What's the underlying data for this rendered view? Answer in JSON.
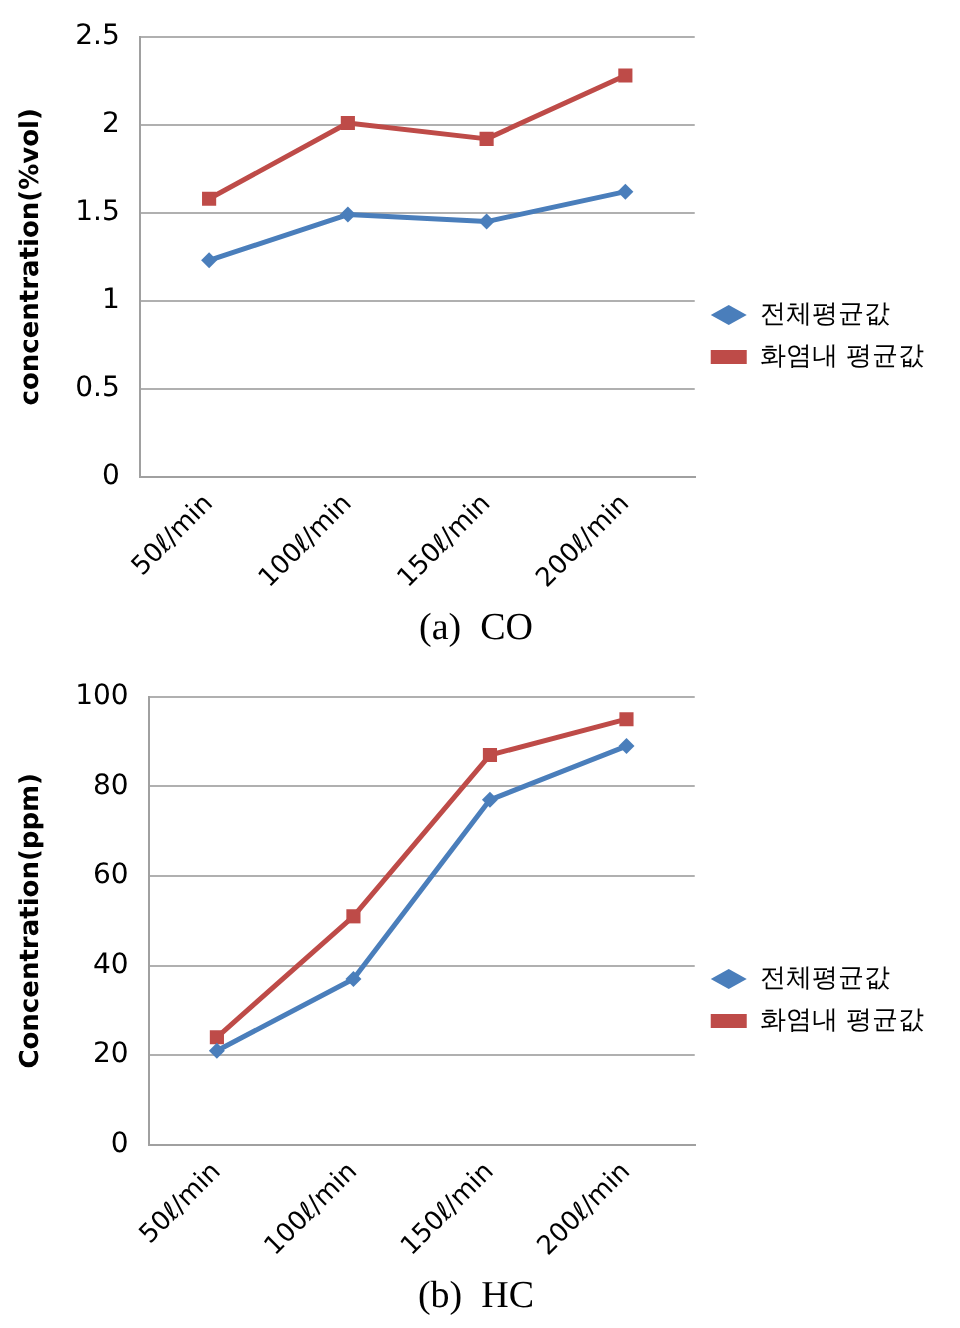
{
  "chart_data": [
    {
      "type": "line",
      "title": "(a)  CO",
      "ylabel": "concentration(%vol)",
      "categories": [
        "50ℓ/min",
        "100ℓ/min",
        "150ℓ/min",
        "200ℓ/min"
      ],
      "series": [
        {
          "name": "전체평균값",
          "color": "#4a7ebb",
          "values": [
            1.23,
            1.49,
            1.45,
            1.62
          ],
          "marker": "diamond"
        },
        {
          "name": "화염내 평균값",
          "color": "#be4b48",
          "values": [
            1.58,
            2.01,
            1.92,
            2.28
          ],
          "marker": "square"
        }
      ],
      "ylim": [
        0,
        2.5
      ],
      "yticks": [
        0,
        0.5,
        1,
        1.5,
        2,
        2.5
      ],
      "grid": "y",
      "legend": "right"
    },
    {
      "type": "line",
      "title": "(b)  HC",
      "ylabel": "Concentration(ppm)",
      "categories": [
        "50ℓ/min",
        "100ℓ/min",
        "150ℓ/min",
        "200ℓ/min"
      ],
      "series": [
        {
          "name": "전체평균값",
          "color": "#4a7ebb",
          "values": [
            21,
            37,
            77,
            89
          ],
          "marker": "diamond"
        },
        {
          "name": "화염내 평균값",
          "color": "#be4b48",
          "values": [
            24,
            51,
            87,
            95
          ],
          "marker": "square"
        }
      ],
      "ylim": [
        0,
        100
      ],
      "yticks": [
        0,
        20,
        40,
        60,
        80,
        100
      ],
      "grid": "y",
      "legend": "right"
    }
  ]
}
